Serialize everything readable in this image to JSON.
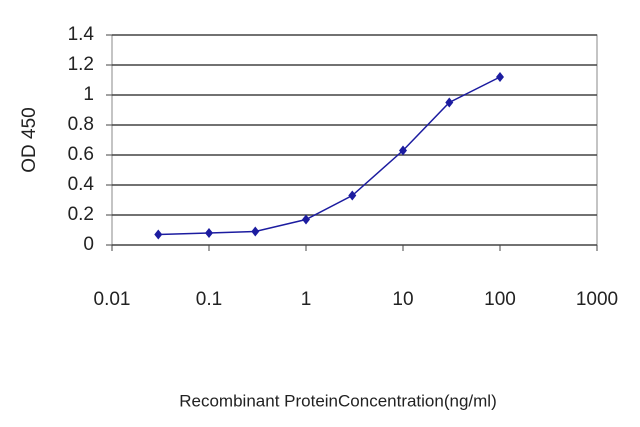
{
  "chart_data": {
    "type": "line",
    "x_label": "Recombinant ProteinConcentration(ng/ml)",
    "y_label": "OD 450",
    "x": [
      0.03,
      0.1,
      0.3,
      1,
      3,
      10,
      30,
      100
    ],
    "series": [
      {
        "name": "OD 450",
        "color": "#1c1ca0",
        "values": [
          0.07,
          0.08,
          0.09,
          0.17,
          0.33,
          0.63,
          0.95,
          1.12
        ]
      }
    ],
    "xlim": [
      0.01,
      1000
    ],
    "xticks": [
      0.01,
      0.1,
      1,
      10,
      100,
      1000
    ],
    "xscale": "log",
    "ylim": [
      0,
      1.4
    ],
    "yticks": [
      0,
      0.2,
      0.4,
      0.6,
      0.8,
      1,
      1.2,
      1.4
    ],
    "grid": true
  }
}
